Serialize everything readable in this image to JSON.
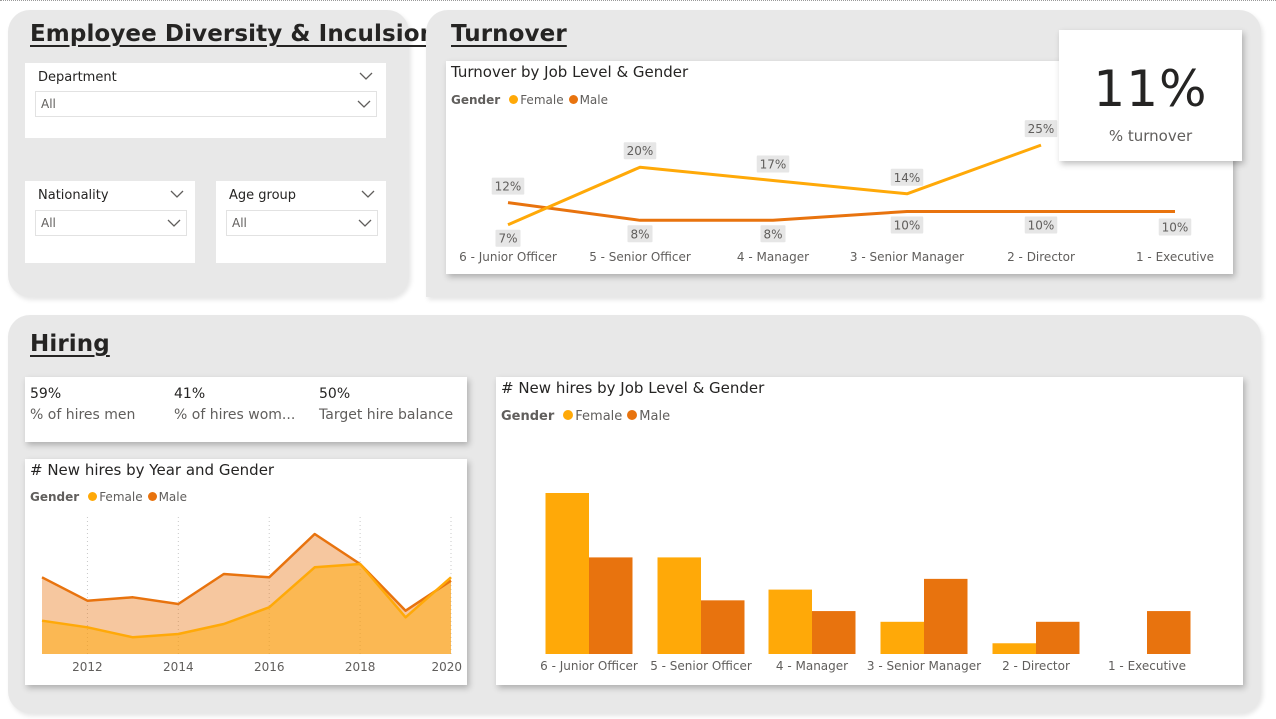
{
  "sections": {
    "diversity": "Employee Diversity & Inculsion ",
    "turnover": "Turnover",
    "hiring": "Hiring"
  },
  "filters": {
    "department": {
      "label": "Department",
      "value": "All"
    },
    "nationality": {
      "label": "Nationality",
      "value": "All"
    },
    "age_group": {
      "label": "Age group",
      "value": "All"
    }
  },
  "turnover_kpi": {
    "value": "11%",
    "label": "% turnover"
  },
  "hire_kpis": [
    {
      "value": "59%",
      "label": "% of hires men"
    },
    {
      "value": "41%",
      "label": "% of hires wom..."
    },
    {
      "value": "50%",
      "label": "Target hire balance"
    }
  ],
  "legend": {
    "title": "Gender",
    "female": "Female",
    "male": "Male"
  },
  "colors": {
    "female": "#FFA908",
    "male": "#E8730E",
    "panel": "#e8e8e8",
    "label_bg": "#e6e6e6"
  },
  "chart_data": [
    {
      "id": "turnover",
      "type": "line",
      "title": "Turnover by Job Level & Gender",
      "categories": [
        "6 - Junior Officer",
        "5 - Senior Officer",
        "4 - Manager",
        "3 - Senior Manager",
        "2 - Director",
        "1 - Executive"
      ],
      "series": [
        {
          "name": "Female",
          "values": [
            7,
            20,
            17,
            14,
            25,
            null
          ],
          "labels": [
            "7%",
            "20%",
            "17%",
            "14%",
            "25%",
            ""
          ]
        },
        {
          "name": "Male",
          "values": [
            12,
            8,
            8,
            10,
            10,
            10
          ],
          "labels": [
            "12%",
            "8%",
            "8%",
            "10%",
            "10%",
            "10%"
          ]
        }
      ],
      "ylim": [
        4,
        30
      ]
    },
    {
      "id": "hires_year",
      "type": "area",
      "title": "# New hires by Year and Gender",
      "x": [
        2011,
        2012,
        2013,
        2014,
        2015,
        2016,
        2017,
        2018,
        2019,
        2020
      ],
      "xticks": [
        "2012",
        "2014",
        "2016",
        "2018",
        "2020"
      ],
      "series": [
        {
          "name": "Female",
          "values": [
            10,
            8,
            5,
            6,
            9,
            14,
            26,
            27,
            11,
            23
          ]
        },
        {
          "name": "Male",
          "values": [
            23,
            16,
            17,
            15,
            24,
            23,
            36,
            27,
            13,
            22
          ]
        }
      ],
      "ylim": [
        0,
        42
      ]
    },
    {
      "id": "hires_level",
      "type": "bar",
      "title": "# New hires by Job Level & Gender",
      "categories": [
        "6 - Junior Officer",
        "5 - Senior Officer",
        "4 - Manager",
        "3 - Senior Manager",
        "2 - Director",
        "1 - Executive"
      ],
      "series": [
        {
          "name": "Female",
          "values": [
            15,
            9,
            6,
            3,
            1,
            0
          ]
        },
        {
          "name": "Male",
          "values": [
            9,
            5,
            4,
            7,
            3,
            4
          ]
        }
      ],
      "ylim": [
        0,
        15
      ]
    }
  ]
}
